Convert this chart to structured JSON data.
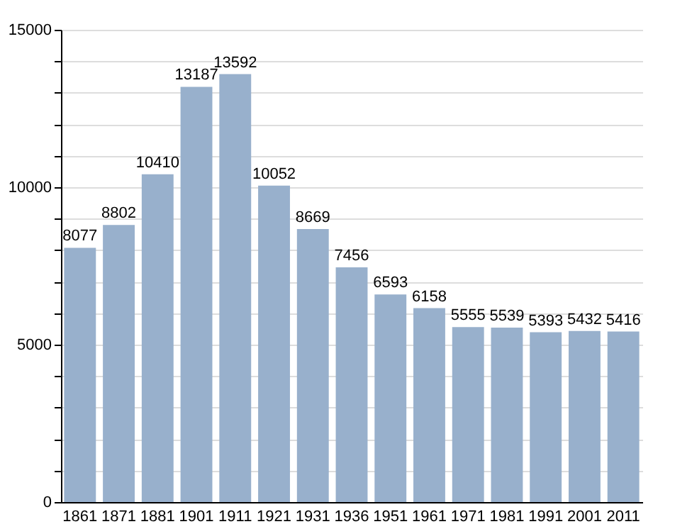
{
  "chart_data": {
    "type": "bar",
    "categories": [
      "1861",
      "1871",
      "1881",
      "1901",
      "1911",
      "1921",
      "1931",
      "1936",
      "1951",
      "1961",
      "1971",
      "1981",
      "1991",
      "2001",
      "2011"
    ],
    "values": [
      8077,
      8802,
      10410,
      13187,
      13592,
      10052,
      8669,
      7456,
      6593,
      6158,
      5555,
      5539,
      5393,
      5432,
      5416
    ],
    "color": "#98b0cc",
    "ylim": [
      0,
      15000
    ],
    "yticks": [
      0,
      {
        "value": 1000,
        "label": null
      },
      {
        "value": 2000,
        "label": null
      },
      {
        "value": 3000,
        "label": null
      },
      {
        "value": 4000,
        "label": null
      },
      5000,
      {
        "value": 6000,
        "label": null
      },
      {
        "value": 7000,
        "label": null
      },
      {
        "value": 8000,
        "label": null
      },
      {
        "value": 9000,
        "label": null
      },
      10000,
      {
        "value": 11000,
        "label": null
      },
      {
        "value": 12000,
        "label": null
      },
      {
        "value": 13000,
        "label": null
      },
      {
        "value": 14000,
        "label": null
      },
      15000
    ],
    "grid": true,
    "data_labels": true
  }
}
